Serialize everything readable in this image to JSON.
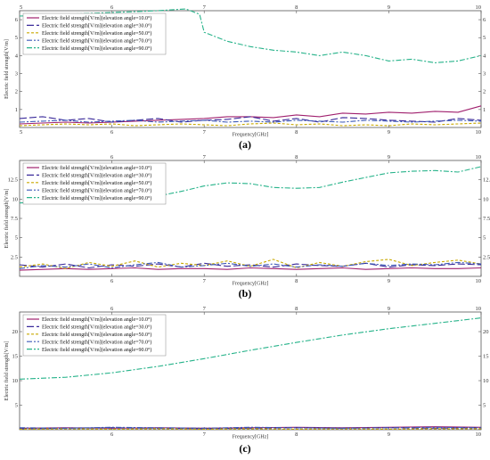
{
  "chart_data": [
    {
      "type": "line",
      "label": "(a)",
      "xlabel": "Frequency[GHz]",
      "ylabel": "Electric field strength[V/m]",
      "xlim": [
        5,
        10
      ],
      "ylim": [
        0,
        6.5
      ],
      "xticks": [
        "5",
        "6",
        "7",
        "8",
        "9",
        "10"
      ],
      "yticks": [
        "1",
        "2",
        "3",
        "4",
        "5",
        "6"
      ],
      "legend_position": "top-left",
      "series": [
        {
          "name": "Electric field strength[V/m](elevation angle=10.0°)",
          "color": "#a0206e",
          "dash": "solid",
          "x": [
            5,
            5.25,
            5.5,
            5.75,
            6,
            6.25,
            6.5,
            6.75,
            7,
            7.25,
            7.5,
            7.75,
            8,
            8.25,
            8.5,
            8.75,
            9,
            9.25,
            9.5,
            9.75,
            10
          ],
          "y": [
            0.2,
            0.25,
            0.3,
            0.25,
            0.3,
            0.35,
            0.4,
            0.45,
            0.5,
            0.6,
            0.6,
            0.55,
            0.7,
            0.6,
            0.8,
            0.75,
            0.85,
            0.8,
            0.9,
            0.85,
            1.2
          ]
        },
        {
          "name": "Electric field strength[V/m](elevation angle=30.0°)",
          "color": "#3a2a9a",
          "dash": "8,3",
          "x": [
            5,
            5.25,
            5.5,
            5.75,
            6,
            6.25,
            6.5,
            6.75,
            7,
            7.25,
            7.5,
            7.75,
            8,
            8.25,
            8.5,
            8.75,
            9,
            9.25,
            9.5,
            9.75,
            10
          ],
          "y": [
            0.5,
            0.6,
            0.4,
            0.5,
            0.3,
            0.4,
            0.5,
            0.3,
            0.4,
            0.45,
            0.6,
            0.35,
            0.5,
            0.3,
            0.55,
            0.5,
            0.4,
            0.35,
            0.3,
            0.5,
            0.4
          ]
        },
        {
          "name": "Electric field strength[V/m](elevation angle=50.0°)",
          "color": "#c8a800",
          "dash": "3,2",
          "x": [
            5,
            5.25,
            5.5,
            5.75,
            6,
            6.25,
            6.5,
            6.75,
            7,
            7.25,
            7.5,
            7.75,
            8,
            8.25,
            8.5,
            8.75,
            9,
            9.25,
            9.5,
            9.75,
            10
          ],
          "y": [
            0.1,
            0.15,
            0.2,
            0.15,
            0.2,
            0.1,
            0.15,
            0.2,
            0.15,
            0.1,
            0.2,
            0.25,
            0.15,
            0.2,
            0.1,
            0.15,
            0.1,
            0.2,
            0.15,
            0.2,
            0.25
          ]
        },
        {
          "name": "Electric field strength[V/m](elevation angle=70.0°)",
          "color": "#3d5ab8",
          "dash": "6,2,2,2",
          "x": [
            5,
            5.25,
            5.5,
            5.75,
            6,
            6.25,
            6.5,
            6.75,
            7,
            7.25,
            7.5,
            7.75,
            8,
            8.25,
            8.5,
            8.75,
            9,
            9.25,
            9.5,
            9.75,
            10
          ],
          "y": [
            0.3,
            0.35,
            0.4,
            0.3,
            0.35,
            0.4,
            0.3,
            0.35,
            0.4,
            0.3,
            0.35,
            0.3,
            0.4,
            0.35,
            0.3,
            0.4,
            0.35,
            0.3,
            0.35,
            0.4,
            0.35
          ]
        },
        {
          "name": "Electric field strength[V/m](elevation angle=90.0°)",
          "color": "#27b38a",
          "dash": "6,2,2,2",
          "x": [
            5,
            5.5,
            6,
            6.5,
            6.8,
            6.95,
            7,
            7.25,
            7.5,
            7.75,
            8,
            8.25,
            8.5,
            8.75,
            9,
            9.25,
            9.5,
            9.75,
            10
          ],
          "y": [
            6.2,
            6.3,
            6.4,
            6.5,
            6.6,
            6.3,
            5.3,
            4.8,
            4.5,
            4.3,
            4.2,
            4.0,
            4.2,
            4.0,
            3.7,
            3.8,
            3.6,
            3.7,
            4.0
          ]
        }
      ]
    },
    {
      "type": "line",
      "label": "(b)",
      "xlabel": "Frequency[GHz]",
      "ylabel": "Electric field strength[V/m]",
      "xlim": [
        5,
        10
      ],
      "ylim": [
        0,
        15
      ],
      "xticks": [
        "6",
        "7",
        "8",
        "9",
        "10"
      ],
      "yticks": [
        "2.5",
        "5",
        "7.5",
        "10",
        "12.5"
      ],
      "legend_position": "top-left",
      "series": [
        {
          "name": "Electric field strength[V/m](elevation angle=10.0°)",
          "color": "#a0206e",
          "dash": "solid",
          "x": [
            5,
            5.25,
            5.5,
            5.75,
            6,
            6.25,
            6.5,
            6.75,
            7,
            7.25,
            7.5,
            7.75,
            8,
            8.25,
            8.5,
            8.75,
            9,
            9.25,
            9.5,
            9.75,
            10
          ],
          "y": [
            0.8,
            0.9,
            1.0,
            0.9,
            1.0,
            1.1,
            0.9,
            1.0,
            1.0,
            0.9,
            1.1,
            1.0,
            0.9,
            1.0,
            1.1,
            0.9,
            1.0,
            1.1,
            1.0,
            1.0,
            1.1
          ]
        },
        {
          "name": "Electric field strength[V/m](elevation angle=30.0°)",
          "color": "#3a2a9a",
          "dash": "8,3",
          "x": [
            5,
            5.25,
            5.5,
            5.75,
            6,
            6.25,
            6.5,
            6.75,
            7,
            7.25,
            7.5,
            7.75,
            8,
            8.25,
            8.5,
            8.75,
            9,
            9.25,
            9.5,
            9.75,
            10
          ],
          "y": [
            1.5,
            1.2,
            1.6,
            1.1,
            1.5,
            1.3,
            1.6,
            1.2,
            1.7,
            1.3,
            1.5,
            1.2,
            1.6,
            1.4,
            1.3,
            1.7,
            1.2,
            1.5,
            1.4,
            1.6,
            1.5
          ]
        },
        {
          "name": "Electric field strength[V/m](elevation angle=50.0°)",
          "color": "#c8a800",
          "dash": "3,2",
          "x": [
            5,
            5.25,
            5.5,
            5.75,
            6,
            6.25,
            6.5,
            6.75,
            7,
            7.25,
            7.5,
            7.75,
            8,
            8.25,
            8.5,
            8.75,
            9,
            9.25,
            9.5,
            9.75,
            10
          ],
          "y": [
            1.2,
            1.6,
            1.0,
            1.8,
            1.3,
            2.0,
            1.2,
            1.7,
            1.4,
            2.0,
            1.3,
            2.2,
            1.1,
            1.8,
            1.3,
            1.9,
            2.2,
            1.4,
            1.8,
            2.1,
            1.6
          ]
        },
        {
          "name": "Electric field strength[V/m](elevation angle=70.0°)",
          "color": "#3d5ab8",
          "dash": "6,2,2,2",
          "x": [
            5,
            5.25,
            5.5,
            5.75,
            6,
            6.25,
            6.5,
            6.75,
            7,
            7.25,
            7.5,
            7.75,
            8,
            8.25,
            8.5,
            8.75,
            9,
            9.25,
            9.5,
            9.75,
            10
          ],
          "y": [
            1.0,
            1.4,
            1.2,
            1.6,
            1.1,
            1.5,
            1.8,
            1.2,
            1.4,
            1.7,
            1.3,
            1.6,
            1.2,
            1.5,
            1.3,
            1.7,
            1.4,
            1.6,
            1.5,
            1.8,
            1.6
          ]
        },
        {
          "name": "Electric field strength[V/m](elevation angle=90.0°)",
          "color": "#27b38a",
          "dash": "6,2,2,2",
          "x": [
            5,
            5.25,
            5.5,
            5.75,
            6,
            6.25,
            6.5,
            6.75,
            7,
            7.25,
            7.5,
            7.75,
            8,
            8.25,
            8.5,
            8.75,
            9,
            9.25,
            9.5,
            9.75,
            10
          ],
          "y": [
            9.5,
            9.7,
            9.8,
            9.6,
            9.8,
            10.0,
            10.4,
            11.0,
            11.7,
            12.1,
            12.0,
            11.5,
            11.4,
            11.5,
            12.2,
            12.8,
            13.4,
            13.6,
            13.7,
            13.5,
            14.2
          ]
        }
      ]
    },
    {
      "type": "line",
      "label": "(c)",
      "xlabel": "Frequency[GHz]",
      "ylabel": "Electric field strength[V/m]",
      "xlim": [
        5,
        10
      ],
      "ylim": [
        0,
        24
      ],
      "xticks": [
        "6",
        "7",
        "8",
        "9",
        "10"
      ],
      "yticks": [
        "5",
        "10",
        "15",
        "20"
      ],
      "legend_position": "top-left",
      "series": [
        {
          "name": "Electric field strength[V/m](elevation angle=10.0°)",
          "color": "#a0206e",
          "dash": "solid",
          "x": [
            5,
            5.5,
            6,
            6.5,
            7,
            7.5,
            8,
            8.5,
            9,
            9.5,
            10
          ],
          "y": [
            0.3,
            0.4,
            0.3,
            0.4,
            0.3,
            0.4,
            0.5,
            0.4,
            0.5,
            0.6,
            0.5
          ]
        },
        {
          "name": "Electric field strength[V/m](elevation angle=30.0°)",
          "color": "#3a2a9a",
          "dash": "8,3",
          "x": [
            5,
            5.5,
            6,
            6.5,
            7,
            7.5,
            8,
            8.5,
            9,
            9.5,
            10
          ],
          "y": [
            0.2,
            0.3,
            0.4,
            0.3,
            0.2,
            0.3,
            0.4,
            0.3,
            0.4,
            0.3,
            0.4
          ]
        },
        {
          "name": "Electric field strength[V/m](elevation angle=50.0°)",
          "color": "#c8a800",
          "dash": "3,2",
          "x": [
            5,
            5.5,
            6,
            6.5,
            7,
            7.5,
            8,
            8.5,
            9,
            9.5,
            10
          ],
          "y": [
            0.1,
            0.2,
            0.1,
            0.2,
            0.1,
            0.2,
            0.1,
            0.2,
            0.1,
            0.2,
            0.2
          ]
        },
        {
          "name": "Electric field strength[V/m](elevation angle=70.0°)",
          "color": "#3d5ab8",
          "dash": "6,2,2,2",
          "x": [
            5,
            5.5,
            6,
            6.5,
            7,
            7.5,
            8,
            8.5,
            9,
            9.5,
            10
          ],
          "y": [
            0.4,
            0.3,
            0.5,
            0.4,
            0.3,
            0.5,
            0.4,
            0.3,
            0.4,
            0.5,
            0.4
          ]
        },
        {
          "name": "Electric field strength[V/m](elevation angle=90.0°)",
          "color": "#27b38a",
          "dash": "6,2,2,2",
          "x": [
            5,
            5.5,
            6,
            6.5,
            7,
            7.5,
            8,
            8.5,
            9,
            9.5,
            10
          ],
          "y": [
            10.3,
            10.7,
            11.6,
            12.9,
            14.5,
            16.2,
            17.8,
            19.3,
            20.6,
            21.7,
            22.8
          ]
        }
      ]
    }
  ]
}
